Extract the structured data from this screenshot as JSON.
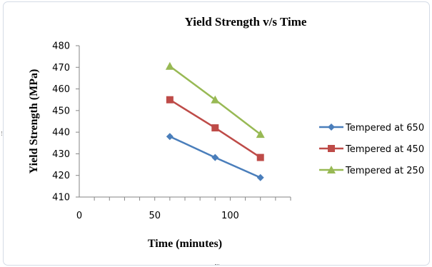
{
  "chart_data": {
    "type": "line",
    "title": "Yield Strength v/s Time",
    "xlabel": "Time (minutes)",
    "ylabel": "Yield Strength (MPa)",
    "xlim": [
      0,
      140
    ],
    "ylim": [
      410,
      480
    ],
    "x_ticks": [
      0,
      50,
      100
    ],
    "y_ticks": [
      410,
      420,
      430,
      440,
      450,
      460,
      470,
      480
    ],
    "grid": false,
    "legend_position": "right",
    "series": [
      {
        "name": "Tempered at 650",
        "color": "#4a7ebb",
        "marker": "diamond",
        "x": [
          60,
          90,
          120
        ],
        "y": [
          438,
          428.3,
          419
        ]
      },
      {
        "name": "Tempered at 450",
        "color": "#be4b48",
        "marker": "square",
        "x": [
          60,
          90,
          120
        ],
        "y": [
          455,
          442,
          428.3
        ]
      },
      {
        "name": "Tempered at 250",
        "color": "#98b954",
        "marker": "triangle",
        "x": [
          60,
          90,
          120
        ],
        "y": [
          470.5,
          455,
          439
        ]
      }
    ]
  }
}
